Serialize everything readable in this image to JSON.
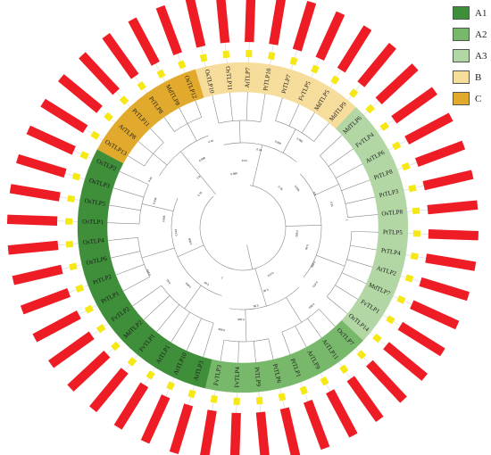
{
  "legend": [
    {
      "label": "A1",
      "color": "#3e8e3a"
    },
    {
      "label": "A2",
      "color": "#78b86a"
    },
    {
      "label": "A3",
      "color": "#b3d6a5"
    },
    {
      "label": "B",
      "color": "#f7dd9c"
    },
    {
      "label": "C",
      "color": "#e2aa2c"
    }
  ],
  "ring_labels": [
    {
      "name": "OsTLP10",
      "group": "B"
    },
    {
      "name": "OsTLP11",
      "group": "B"
    },
    {
      "name": "AtTLP7",
      "group": "B"
    },
    {
      "name": "PtTLP10",
      "group": "B"
    },
    {
      "name": "PtTLP7",
      "group": "B"
    },
    {
      "name": "FvTLP5",
      "group": "B"
    },
    {
      "name": "MdTLP5",
      "group": "B"
    },
    {
      "name": "MdTLP9",
      "group": "B"
    },
    {
      "name": "MdTLP6",
      "group": "A3"
    },
    {
      "name": "FvTLP4",
      "group": "A3"
    },
    {
      "name": "AtTLP6",
      "group": "A3"
    },
    {
      "name": "PtTLP8",
      "group": "A3"
    },
    {
      "name": "PtTLP3",
      "group": "A3"
    },
    {
      "name": "OsTLP8",
      "group": "A3"
    },
    {
      "name": "PtTLP5",
      "group": "A3"
    },
    {
      "name": "PtTLP4",
      "group": "A3"
    },
    {
      "name": "AtTLP2",
      "group": "A3"
    },
    {
      "name": "MdTLP7",
      "group": "A3"
    },
    {
      "name": "FvTLP1",
      "group": "A3"
    },
    {
      "name": "OsTLP14",
      "group": "A3"
    },
    {
      "name": "OsTLP7",
      "group": "A2"
    },
    {
      "name": "AtTLP11",
      "group": "A2"
    },
    {
      "name": "AtTLP9",
      "group": "A2"
    },
    {
      "name": "PtTLP1",
      "group": "A2"
    },
    {
      "name": "PtTLP6",
      "group": "A2"
    },
    {
      "name": "PtTLP9",
      "group": "A2"
    },
    {
      "name": "FvTLP4",
      "group": "A2"
    },
    {
      "name": "FvTLP3",
      "group": "A2"
    },
    {
      "name": "AtTLP3",
      "group": "A1"
    },
    {
      "name": "AtTLP10",
      "group": "A1"
    },
    {
      "name": "AtTLP1",
      "group": "A1"
    },
    {
      "name": "FvTLP1",
      "group": "A1"
    },
    {
      "name": "MdTLP2",
      "group": "A1"
    },
    {
      "name": "FvTLP2",
      "group": "A1"
    },
    {
      "name": "PtTLP1",
      "group": "A1"
    },
    {
      "name": "PtTLP2",
      "group": "A1"
    },
    {
      "name": "OsTLP6",
      "group": "A1"
    },
    {
      "name": "OsTLP4",
      "group": "A1"
    },
    {
      "name": "OsTLP1",
      "group": "A1"
    },
    {
      "name": "OsTLP5",
      "group": "A1"
    },
    {
      "name": "OsTLP3",
      "group": "A1"
    },
    {
      "name": "OsTLP2",
      "group": "A1"
    },
    {
      "name": "OsTLP13",
      "group": "C"
    },
    {
      "name": "AtTLP8",
      "group": "C"
    },
    {
      "name": "PtTLP11",
      "group": "C"
    },
    {
      "name": "PtTLP8",
      "group": "C"
    },
    {
      "name": "MdTLP8",
      "group": "C"
    },
    {
      "name": "OsTLP12",
      "group": "C"
    }
  ],
  "bootstrap_values": [
    "0.996",
    "0.24",
    "0.18",
    "0.994",
    "0.960",
    "0.78",
    "0.936",
    "0.9",
    "0.31",
    "1",
    "0.982",
    "0.99",
    "0.858",
    "0.872",
    "0.692",
    "0.672",
    "0.46",
    "0.58",
    "0.928",
    "0.999",
    "1",
    "0.93",
    "0.864",
    "0.61",
    "0.862",
    "0.808",
    "0.624",
    "0.866",
    "0.848",
    "0.44",
    "0.76",
    "0.8",
    "0.598",
    "0.44"
  ],
  "outer_bar_color": "#ee1c25",
  "inner_box_color": "#f5e814"
}
